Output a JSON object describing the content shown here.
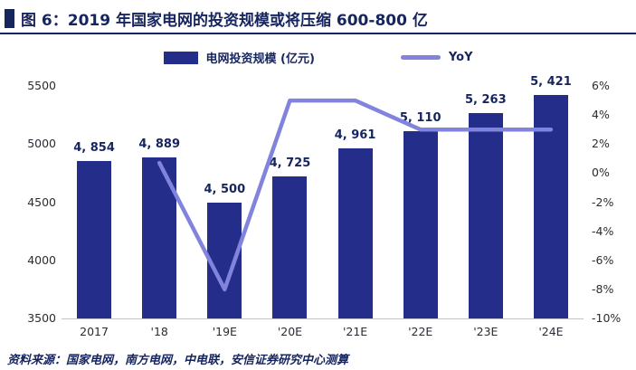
{
  "header": {
    "figure_label": "图 6"
  },
  "footer": {
    "source": "资料来源：国家电网，南方电网，中电联，安信证券研究中心测算"
  },
  "colors": {
    "bar": "#252D8A",
    "line": "#8184DC",
    "ink": "#17255F",
    "axis_text": "#2B2B33",
    "axis_line": "#C4C4C4"
  },
  "chart_data": {
    "type": "bar",
    "title": "图 6：2019 年国家电网的投资规模或将压缩 600-800 亿",
    "categories": [
      "2017",
      "'18",
      "'19E",
      "'20E",
      "'21E",
      "'22E",
      "'23E",
      "'24E"
    ],
    "series": [
      {
        "name": "电网投资规模 (亿元)",
        "type": "bar",
        "axis": "left",
        "values": [
          4854,
          4889,
          4500,
          4725,
          4961,
          5110,
          5263,
          5421
        ],
        "value_labels": [
          "4, 854",
          "4, 889",
          "4, 500",
          "4, 725",
          "4, 961",
          "5, 110",
          "5, 263",
          "5, 421"
        ]
      },
      {
        "name": "YoY",
        "type": "line",
        "axis": "right",
        "values_pct": [
          null,
          0.7,
          -8.0,
          5.0,
          5.0,
          3.0,
          3.0,
          3.0
        ]
      }
    ],
    "left_axis": {
      "min": 3500,
      "max": 5500,
      "ticks": [
        5500,
        5000,
        4500,
        4000,
        3500
      ]
    },
    "right_axis": {
      "min": -10,
      "max": 6,
      "ticks": [
        "6%",
        "4%",
        "2%",
        "0%",
        "-2%",
        "-4%",
        "-6%",
        "-8%",
        "-10%"
      ]
    },
    "grid": false,
    "legend_position": "top"
  }
}
